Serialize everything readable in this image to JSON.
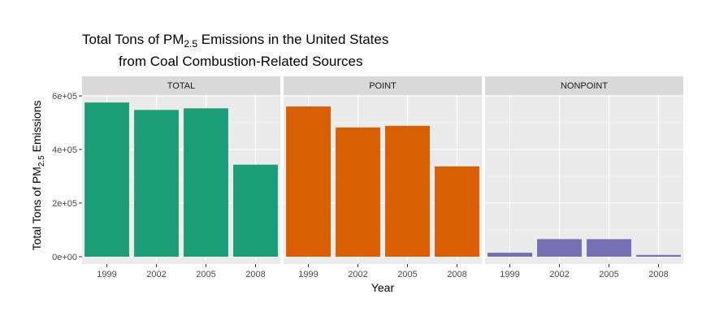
{
  "chart_data": {
    "type": "bar",
    "title_line1_parts": [
      "Total Tons of PM",
      "2.5",
      " Emissions in the United States"
    ],
    "title_line2": "from Coal Combustion-Related Sources",
    "xlabel": "Year",
    "ylabel_parts": [
      "Total Tons of PM",
      "2.5",
      " Emissions"
    ],
    "categories": [
      "1999",
      "2002",
      "2005",
      "2008"
    ],
    "ylim": [
      0,
      680000
    ],
    "yticks": [
      0,
      200000,
      400000,
      600000
    ],
    "ytick_labels": [
      "0e+00",
      "2e+05",
      "4e+05",
      "6e+05"
    ],
    "grid": true,
    "legend": "none",
    "panel_bg": "#ebebeb",
    "strip_bg": "#d9d9d9",
    "panels": [
      {
        "label": "TOTAL",
        "color": "#1b9e77",
        "values": [
          575200,
          547500,
          553500,
          343400
        ]
      },
      {
        "label": "POINT",
        "color": "#d95f02",
        "values": [
          560300,
          482000,
          488100,
          336800
        ]
      },
      {
        "label": "NONPOINT",
        "color": "#7570b3",
        "values": [
          14900,
          65500,
          65400,
          6600
        ]
      }
    ]
  }
}
